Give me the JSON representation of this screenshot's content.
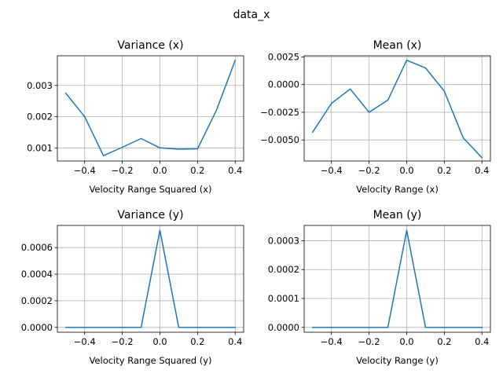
{
  "figure": {
    "suptitle": "data_x"
  },
  "colors": {
    "line": "#1f77b4",
    "grid": "#b0b0b0",
    "axes": "#000000"
  },
  "chart_data": [
    {
      "type": "line",
      "title": "Variance (x)",
      "xlabel": "Velocity Range Squared (x)",
      "ylabel": "",
      "grid": true,
      "xlim": [
        -0.545,
        0.445
      ],
      "ylim": [
        0.00058,
        0.00395
      ],
      "xticks": [
        -0.4,
        -0.2,
        0.0,
        0.2,
        0.4
      ],
      "xtick_labels": [
        "−0.4",
        "−0.2",
        "0.0",
        "0.2",
        "0.4"
      ],
      "yticks": [
        0.001,
        0.002,
        0.003
      ],
      "ytick_labels": [
        "0.001",
        "0.002",
        "0.003"
      ],
      "series": [
        {
          "x": [
            -0.5,
            -0.4,
            -0.3,
            -0.2,
            -0.1,
            0.0,
            0.1,
            0.2,
            0.3,
            0.4
          ],
          "values": [
            0.00275,
            0.002,
            0.00075,
            0.00102,
            0.0013,
            0.001,
            0.00096,
            0.00097,
            0.0022,
            0.0038
          ]
        }
      ]
    },
    {
      "type": "line",
      "title": "Mean (x)",
      "xlabel": "Velocity Range (x)",
      "ylabel": "",
      "grid": true,
      "xlim": [
        -0.545,
        0.445
      ],
      "ylim": [
        -0.0069,
        0.0026
      ],
      "xticks": [
        -0.4,
        -0.2,
        0.0,
        0.2,
        0.4
      ],
      "xtick_labels": [
        "−0.4",
        "−0.2",
        "0.0",
        "0.2",
        "0.4"
      ],
      "yticks": [
        0.0025,
        0.0,
        -0.0025,
        -0.005
      ],
      "ytick_labels": [
        "0.0025",
        "0.0000",
        "−0.0025",
        "−0.0050"
      ],
      "series": [
        {
          "x": [
            -0.5,
            -0.4,
            -0.3,
            -0.2,
            -0.1,
            0.0,
            0.1,
            0.2,
            0.3,
            0.4
          ],
          "values": [
            -0.0043,
            -0.0017,
            -0.0004,
            -0.0025,
            -0.0014,
            0.0022,
            0.0015,
            -0.0006,
            -0.0048,
            -0.0066
          ]
        }
      ]
    },
    {
      "type": "line",
      "title": "Variance (y)",
      "xlabel": "Velocity Range Squared (y)",
      "ylabel": "",
      "grid": true,
      "xlim": [
        -0.545,
        0.445
      ],
      "ylim": [
        -3.65e-05,
        0.0007665
      ],
      "xticks": [
        -0.4,
        -0.2,
        0.0,
        0.2,
        0.4
      ],
      "xtick_labels": [
        "−0.4",
        "−0.2",
        "0.0",
        "0.2",
        "0.4"
      ],
      "yticks": [
        0.0,
        0.0002,
        0.0004,
        0.0006
      ],
      "ytick_labels": [
        "0.0000",
        "0.0002",
        "0.0004",
        "0.0006"
      ],
      "series": [
        {
          "x": [
            -0.5,
            -0.4,
            -0.3,
            -0.2,
            -0.1,
            0.0,
            0.1,
            0.2,
            0.3,
            0.4
          ],
          "values": [
            0,
            0,
            0,
            0,
            0,
            0.00073,
            0,
            0,
            0,
            0
          ]
        }
      ]
    },
    {
      "type": "line",
      "title": "Mean (y)",
      "xlabel": "Velocity Range (y)",
      "ylabel": "",
      "grid": true,
      "xlim": [
        -0.545,
        0.445
      ],
      "ylim": [
        -1.68e-05,
        0.0003528
      ],
      "xticks": [
        -0.4,
        -0.2,
        0.0,
        0.2,
        0.4
      ],
      "xtick_labels": [
        "−0.4",
        "−0.2",
        "0.0",
        "0.2",
        "0.4"
      ],
      "yticks": [
        0.0,
        0.0001,
        0.0002,
        0.0003
      ],
      "ytick_labels": [
        "0.0000",
        "0.0001",
        "0.0002",
        "0.0003"
      ],
      "series": [
        {
          "x": [
            -0.5,
            -0.4,
            -0.3,
            -0.2,
            -0.1,
            0.0,
            0.1,
            0.2,
            0.3,
            0.4
          ],
          "values": [
            0,
            0,
            0,
            0,
            0,
            0.000336,
            0,
            0,
            0,
            0
          ]
        }
      ]
    }
  ]
}
